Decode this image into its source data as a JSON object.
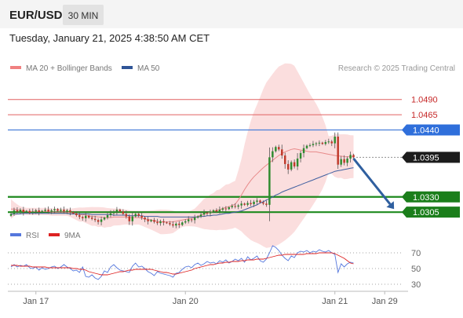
{
  "header": {
    "symbol": "EUR/USD",
    "timeframe": "30 MIN",
    "timestamp": "Tuesday, January 21, 2025 4:38:50 AM CET"
  },
  "legend": {
    "items": [
      {
        "label": "MA 20 + Bollinger Bands",
        "color": "#f08080"
      },
      {
        "label": "MA 50",
        "color": "#2f5597"
      }
    ],
    "credit": "Research © 2025 Trading Central"
  },
  "colors": {
    "bull": "#2e8b2e",
    "bear": "#c0392b",
    "resistance": "#e06060",
    "pivot": "#4a7fd9",
    "support": "#1e8a1e",
    "arrow": "#2f5f9f",
    "band": "#fbdede",
    "ma20": "#e88a8a",
    "ma50": "#4060a0",
    "rsi": "#5577dd",
    "rsi_ma": "#dd2222",
    "current": "#222222"
  },
  "chart_data": [
    {
      "type": "candlestick",
      "symbol": "EUR/USD",
      "timeframe": "30 MIN",
      "y_range": [
        1.0282,
        1.0527
      ],
      "x_range_bars": [
        0,
        128
      ],
      "x_ticks": [
        {
          "label": "Jan 17",
          "bar": 8
        },
        {
          "label": "Jan 20",
          "bar": 56
        },
        {
          "label": "Jan 21",
          "bar": 104
        },
        {
          "label": "Jan 29",
          "bar": 120
        }
      ],
      "levels": [
        {
          "label": "1.0490",
          "value": 1.049,
          "kind": "resistance"
        },
        {
          "label": "1.0465",
          "value": 1.0465,
          "kind": "resistance"
        },
        {
          "label": "1.0440",
          "value": 1.044,
          "kind": "pivot"
        },
        {
          "label": "1.0395",
          "value": 1.0395,
          "kind": "current"
        },
        {
          "label": "1.0330",
          "value": 1.033,
          "kind": "support"
        },
        {
          "label": "1.0305",
          "value": 1.0305,
          "kind": "support"
        }
      ],
      "forecast_arrow": {
        "from": {
          "bar": 110,
          "price": 1.0393
        },
        "to": {
          "bar": 123,
          "price": 1.031
        }
      },
      "closes": [
        1.0302,
        1.0308,
        1.0306,
        1.0309,
        1.0305,
        1.0307,
        1.0304,
        1.0306,
        1.0308,
        1.0305,
        1.0307,
        1.0309,
        1.0306,
        1.0308,
        1.031,
        1.0307,
        1.0309,
        1.0306,
        1.0308,
        1.0305,
        1.0303,
        1.03,
        1.0297,
        1.0295,
        1.0299,
        1.0296,
        1.0294,
        1.0292,
        1.0289,
        1.0293,
        1.0296,
        1.03,
        1.0303,
        1.0306,
        1.0309,
        1.0306,
        1.0302,
        1.0298,
        1.029,
        1.0298,
        1.0302,
        1.0299,
        1.0296,
        1.0293,
        1.029,
        1.0292,
        1.0289,
        1.0287,
        1.029,
        1.0288,
        1.0287,
        1.0285,
        1.0283,
        1.0286,
        1.0284,
        1.0288,
        1.029,
        1.0293,
        1.0292,
        1.0296,
        1.0298,
        1.0301,
        1.0304,
        1.0303,
        1.0305,
        1.0308,
        1.0306,
        1.0309,
        1.0311,
        1.031,
        1.0313,
        1.0315,
        1.0314,
        1.0316,
        1.0319,
        1.0317,
        1.032,
        1.0318,
        1.0322,
        1.0324,
        1.0321,
        1.0319,
        1.0317,
        1.0395,
        1.0405,
        1.0412,
        1.0408,
        1.0398,
        1.0384,
        1.0375,
        1.0387,
        1.038,
        1.0393,
        1.0402,
        1.041,
        1.0414,
        1.0415,
        1.0417,
        1.0418,
        1.0419,
        1.0417,
        1.042,
        1.0421,
        1.0418,
        1.0429,
        1.0383,
        1.0392,
        1.0386,
        1.0393,
        1.0399,
        1.0395
      ],
      "ma20": [
        1.031,
        1.031,
        1.0309,
        1.0308,
        1.0307,
        1.0306,
        1.0306,
        1.0306,
        1.0306,
        1.0306,
        1.0306,
        1.0306,
        1.0306,
        1.0305,
        1.0305,
        1.0305,
        1.0305,
        1.0305,
        1.0305,
        1.0304,
        1.0303,
        1.0302,
        1.0301,
        1.0301,
        1.03,
        1.0299,
        1.0298,
        1.0298,
        1.0297,
        1.0297,
        1.0296,
        1.0296,
        1.0296,
        1.0297,
        1.0297,
        1.0297,
        1.0297,
        1.0297,
        1.0296,
        1.0296,
        1.0296,
        1.0296,
        1.0295,
        1.0294,
        1.0293,
        1.0292,
        1.0291,
        1.029,
        1.0289,
        1.0289,
        1.0289,
        1.0289,
        1.0289,
        1.029,
        1.0291,
        1.0292,
        1.0293,
        1.0294,
        1.0295,
        1.0296,
        1.0298,
        1.03,
        1.0302,
        1.0303,
        1.0305,
        1.0306,
        1.0308,
        1.0309,
        1.0311,
        1.0313,
        1.0314,
        1.0316,
        1.0318,
        1.0325,
        1.0333,
        1.0342,
        1.035,
        1.0357,
        1.0363,
        1.0368,
        1.0373,
        1.0378,
        1.0382,
        1.0386,
        1.039,
        1.0394,
        1.0398,
        1.0401,
        1.0404,
        1.0406,
        1.0408,
        1.0409,
        1.0408,
        1.0407,
        1.0406,
        1.0405,
        1.0404,
        1.0404,
        1.0404,
        1.0403,
        1.0402,
        1.0401,
        1.04,
        1.0399,
        1.0398,
        1.0397,
        1.0397,
        1.0396,
        1.0396,
        1.0396,
        1.0396
      ],
      "ma50": [
        1.0302,
        1.0302,
        1.0302,
        1.0302,
        1.0303,
        1.0303,
        1.0303,
        1.0303,
        1.0303,
        1.0303,
        1.0303,
        1.0303,
        1.0303,
        1.0303,
        1.0303,
        1.0303,
        1.0303,
        1.0303,
        1.0303,
        1.0302,
        1.0302,
        1.0302,
        1.0302,
        1.0302,
        1.0302,
        1.0302,
        1.0301,
        1.0301,
        1.0301,
        1.0301,
        1.0301,
        1.0301,
        1.0301,
        1.03,
        1.03,
        1.03,
        1.03,
        1.03,
        1.0299,
        1.0299,
        1.0299,
        1.0299,
        1.0299,
        1.0298,
        1.0298,
        1.0298,
        1.0298,
        1.0298,
        1.0297,
        1.0297,
        1.0297,
        1.0297,
        1.0297,
        1.0297,
        1.0297,
        1.0297,
        1.0297,
        1.0297,
        1.0297,
        1.0297,
        1.0297,
        1.0298,
        1.0298,
        1.0299,
        1.0299,
        1.03,
        1.03,
        1.0301,
        1.0302,
        1.0303,
        1.0303,
        1.0304,
        1.0305,
        1.0306,
        1.0307,
        1.0309,
        1.0311,
        1.0313,
        1.0315,
        1.0317,
        1.032,
        1.0322,
        1.0325,
        1.0327,
        1.033,
        1.0333,
        1.0335,
        1.0338,
        1.034,
        1.0342,
        1.0344,
        1.0346,
        1.0348,
        1.035,
        1.0352,
        1.0354,
        1.0356,
        1.0358,
        1.036,
        1.0362,
        1.0364,
        1.0366,
        1.0368,
        1.037,
        1.0372,
        1.0373,
        1.0374,
        1.0375,
        1.0376,
        1.0377,
        1.0378
      ]
    },
    {
      "type": "line",
      "title": "",
      "legend": [
        "RSI",
        "9MA"
      ],
      "y_range": [
        20,
        80
      ],
      "y_ticks": [
        70,
        50,
        30
      ],
      "reference_lines": [
        70,
        50,
        30
      ],
      "series": [
        {
          "name": "RSI",
          "values": [
            52,
            55,
            52,
            54,
            53,
            55,
            51,
            50,
            52,
            48,
            51,
            49,
            50,
            52,
            53,
            50,
            52,
            55,
            52,
            50,
            47,
            48,
            45,
            52,
            40,
            39,
            42,
            38,
            36,
            40,
            47,
            45,
            52,
            55,
            51,
            48,
            47,
            46,
            45,
            53,
            57,
            52,
            53,
            50,
            46,
            44,
            41,
            46,
            44,
            43,
            42,
            41,
            39,
            44,
            45,
            49,
            52,
            53,
            51,
            55,
            57,
            54,
            56,
            59,
            57,
            58,
            56,
            60,
            58,
            61,
            57,
            59,
            62,
            60,
            63,
            58,
            65,
            61,
            63,
            66,
            60,
            58,
            62,
            70,
            79,
            77,
            73,
            67,
            63,
            60,
            66,
            64,
            70,
            72,
            71,
            73,
            70,
            72,
            71,
            74,
            72,
            71,
            73,
            70,
            68,
            45,
            56,
            52,
            56,
            58,
            57
          ]
        },
        {
          "name": "9MA",
          "values": [
            54,
            54,
            54,
            53,
            53,
            53,
            53,
            52,
            52,
            52,
            52,
            52,
            51,
            51,
            51,
            51,
            51,
            51,
            51,
            51,
            50,
            50,
            49,
            49,
            48,
            46,
            45,
            44,
            43,
            42,
            42,
            42,
            43,
            44,
            45,
            46,
            46,
            47,
            48,
            48,
            49,
            49,
            49,
            49,
            49,
            49,
            48,
            47,
            46,
            45,
            45,
            44,
            43,
            43,
            44,
            45,
            46,
            47,
            48,
            50,
            51,
            52,
            53,
            54,
            55,
            55,
            56,
            57,
            57,
            58,
            58,
            59,
            59,
            59,
            60,
            60,
            61,
            61,
            61,
            62,
            62,
            62,
            63,
            64,
            65,
            66,
            67,
            67,
            68,
            68,
            68,
            68,
            68,
            68,
            68,
            69,
            69,
            69,
            69,
            70,
            70,
            70,
            70,
            70,
            69,
            67,
            65,
            63,
            60,
            57,
            56
          ]
        }
      ]
    }
  ]
}
